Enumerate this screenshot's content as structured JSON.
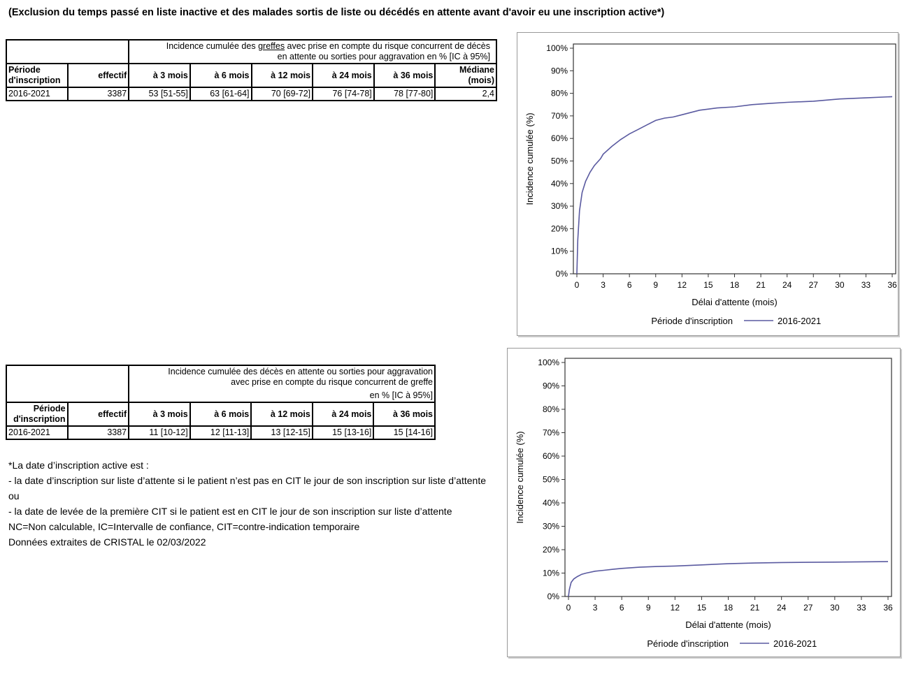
{
  "heading": "(Exclusion du temps passé en liste inactive et des malades sortis de liste ou décédés en attente avant d'avoir eu une inscription active*)",
  "table1": {
    "title_part1": "Incidence cumulée des ",
    "title_underlined": "greffes",
    "title_part2": "  avec prise en compte du risque concurrent de décès",
    "title_line2": "en attente ou sorties pour aggravation en % [IC à 95%]",
    "col_periode": "Période d'inscription",
    "col_effectif": "effectif",
    "col_3": "à 3 mois",
    "col_6": "à 6 mois",
    "col_12": "à 12 mois",
    "col_24": "à 24 mois",
    "col_36": "à 36 mois",
    "col_mediane": "Médiane (mois)",
    "row": {
      "periode": "2016-2021",
      "effectif": "3387",
      "m3": "53 [51-55]",
      "m6": "63 [61-64]",
      "m12": "70 [69-72]",
      "m24": "76 [74-78]",
      "m36": "78 [77-80]",
      "mediane": "2,4"
    }
  },
  "table2": {
    "title_line1": "Incidence cumulée des décès en attente ou sorties pour aggravation",
    "title_line2": "avec prise en compte du risque concurrent de greffe",
    "title_line3": "en % [IC à 95%]",
    "col_periode": "Période d'inscription",
    "col_effectif": "effectif",
    "col_3": "à 3 mois",
    "col_6": "à 6 mois",
    "col_12": "à 12 mois",
    "col_24": "à 24 mois",
    "col_36": "à 36 mois",
    "row": {
      "periode": "2016-2021",
      "effectif": "3387",
      "m3": "11 [10-12]",
      "m6": "12 [11-13]",
      "m12": "13 [12-15]",
      "m24": "15 [13-16]",
      "m36": "15 [14-16]"
    }
  },
  "notes": [
    "*La date d’inscription active est :",
    "- la date d’inscription sur liste d’attente si le patient n’est pas en CIT le jour de son inscription sur liste d’attente",
    "ou",
    "- la date de levée de la première CIT si le patient est en CIT le jour de son inscription sur liste d’attente",
    "NC=Non calculable, IC=Intervalle de confiance, CIT=contre-indication temporaire",
    "Données extraites de CRISTAL le 02/03/2022"
  ],
  "chart_data": [
    {
      "type": "line",
      "xlabel": "Délai d'attente (mois)",
      "ylabel": "Incidence cumulée (%)",
      "xticks": [
        "0",
        "3",
        "6",
        "9",
        "12",
        "15",
        "18",
        "21",
        "24",
        "27",
        "30",
        "33",
        "36"
      ],
      "yticks": [
        "0%",
        "10%",
        "20%",
        "30%",
        "40%",
        "50%",
        "60%",
        "70%",
        "80%",
        "90%",
        "100%"
      ],
      "xlim": [
        0,
        36
      ],
      "ylim": [
        0,
        100
      ],
      "legend_title": "Période d'inscription",
      "legend_position": "bottom",
      "line_color": "#5a5aa0",
      "series": [
        {
          "name": "2016-2021",
          "x": [
            0,
            0.1,
            0.3,
            0.6,
            1,
            1.5,
            2,
            2.7,
            3,
            4,
            5,
            6,
            7,
            8,
            9,
            10,
            11,
            12,
            14,
            16,
            18,
            20,
            22,
            24,
            27,
            30,
            33,
            36
          ],
          "y": [
            0,
            15,
            28,
            36,
            41,
            45,
            48,
            51,
            53,
            56.5,
            59.5,
            62,
            64,
            66,
            68,
            69,
            69.5,
            70.5,
            72.5,
            73.5,
            74,
            75,
            75.5,
            76,
            76.5,
            77.5,
            78,
            78.5
          ]
        }
      ]
    },
    {
      "type": "line",
      "xlabel": "Délai d'attente (mois)",
      "ylabel": "Incidence cumulée (%)",
      "xticks": [
        "0",
        "3",
        "6",
        "9",
        "12",
        "15",
        "18",
        "21",
        "24",
        "27",
        "30",
        "33",
        "36"
      ],
      "yticks": [
        "0%",
        "10%",
        "20%",
        "30%",
        "40%",
        "50%",
        "60%",
        "70%",
        "80%",
        "90%",
        "100%"
      ],
      "xlim": [
        0,
        36
      ],
      "ylim": [
        0,
        100
      ],
      "legend_title": "Période d'inscription",
      "legend_position": "bottom",
      "line_color": "#5a5aa0",
      "series": [
        {
          "name": "2016-2021",
          "x": [
            0,
            0.1,
            0.3,
            0.6,
            1,
            1.5,
            2,
            3,
            4,
            5,
            6,
            8,
            10,
            12,
            15,
            18,
            21,
            24,
            27,
            30,
            33,
            36
          ],
          "y": [
            0,
            3,
            6,
            7.5,
            8.5,
            9.5,
            10,
            10.8,
            11.2,
            11.6,
            12,
            12.5,
            12.8,
            13,
            13.5,
            14,
            14.3,
            14.5,
            14.6,
            14.7,
            14.8,
            14.9
          ]
        }
      ]
    }
  ]
}
